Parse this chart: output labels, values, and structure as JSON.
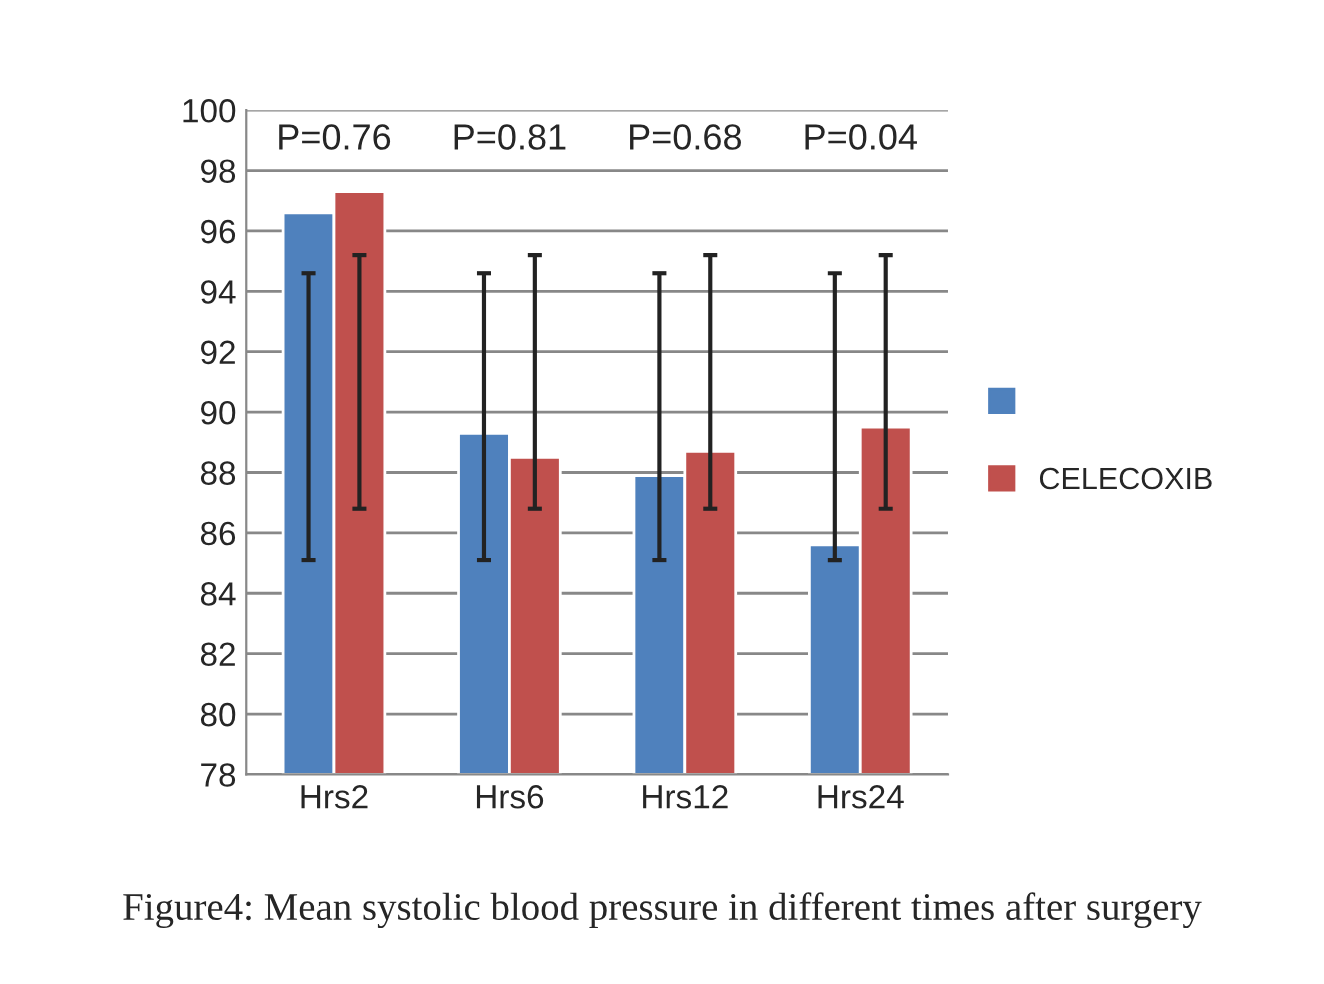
{
  "chart_data": {
    "type": "bar",
    "categories": [
      "Hrs2",
      "Hrs6",
      "Hrs12",
      "Hrs24"
    ],
    "series": [
      {
        "color": "#4f81bd",
        "values": [
          96.6,
          89.3,
          87.9,
          85.6
        ],
        "errors": [
          [
            85.1,
            94.6
          ],
          [
            85.1,
            94.6
          ],
          [
            85.1,
            94.6
          ],
          [
            85.1,
            94.6
          ]
        ]
      },
      {
        "name": "CELECOXIB",
        "color": "#c0504d",
        "values": [
          97.3,
          88.5,
          88.7,
          89.5
        ],
        "errors": [
          [
            86.8,
            95.2
          ],
          [
            86.8,
            95.2
          ],
          [
            86.8,
            95.2
          ],
          [
            86.8,
            95.2
          ]
        ]
      }
    ],
    "ylim": [
      78,
      100
    ],
    "yticks": [
      78,
      80,
      82,
      84,
      86,
      88,
      90,
      92,
      94,
      96,
      98,
      100
    ],
    "grid": "y",
    "legend": "right",
    "annotations": [
      "P=0.76",
      "P=0.81",
      "P=0.68",
      "P=0.04",
      "Figure4: Mean systolic blood pressure in different times after surgery"
    ]
  }
}
